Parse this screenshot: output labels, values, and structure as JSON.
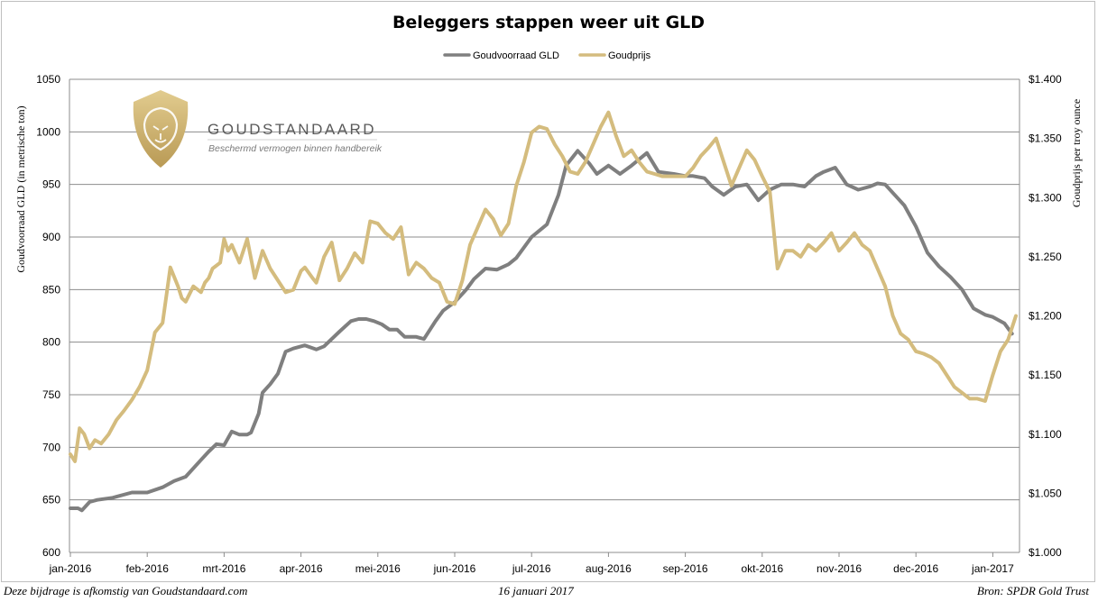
{
  "chart_data": {
    "type": "line",
    "title": "Beleggers stappen weer uit GLD",
    "ylabel": "Goudvoorraad GLD (in metrische ton)",
    "y2label": "Goudprijs per troy ounce",
    "ylim": [
      600,
      1050
    ],
    "y2lim": [
      1.0,
      1.4
    ],
    "yticks": [
      "600",
      "650",
      "700",
      "750",
      "800",
      "850",
      "900",
      "950",
      "1000",
      "1050"
    ],
    "y2ticks": [
      "$1.000",
      "$1.050",
      "$1.100",
      "$1.150",
      "$1.200",
      "$1.250",
      "$1.300",
      "$1.350",
      "$1.400"
    ],
    "xticks": [
      "jan-2016",
      "feb-2016",
      "mrt-2016",
      "apr-2016",
      "mei-2016",
      "jun-2016",
      "jul-2016",
      "aug-2016",
      "sep-2016",
      "okt-2016",
      "nov-2016",
      "dec-2016",
      "jan-2017"
    ],
    "grid": true,
    "legend_position": "top-center",
    "series": [
      {
        "name": "Goudvoorraad GLD",
        "color": "#7f7f7f",
        "axis": "left",
        "x": [
          0.0,
          0.1,
          0.15,
          0.25,
          0.35,
          0.55,
          0.8,
          1.0,
          1.2,
          1.35,
          1.5,
          1.7,
          1.8,
          1.9,
          2.0,
          2.1,
          2.2,
          2.3,
          2.35,
          2.45,
          2.5,
          2.6,
          2.7,
          2.8,
          2.9,
          3.05,
          3.2,
          3.3,
          3.5,
          3.65,
          3.75,
          3.85,
          3.95,
          4.05,
          4.15,
          4.25,
          4.35,
          4.5,
          4.6,
          4.75,
          4.85,
          5.0,
          5.15,
          5.25,
          5.4,
          5.55,
          5.7,
          5.8,
          5.9,
          6.0,
          6.2,
          6.35,
          6.45,
          6.6,
          6.75,
          6.85,
          7.0,
          7.15,
          7.3,
          7.5,
          7.65,
          7.85,
          8.0,
          8.1,
          8.25,
          8.35,
          8.5,
          8.65,
          8.8,
          8.95,
          9.1,
          9.25,
          9.4,
          9.55,
          9.7,
          9.8,
          9.95,
          10.1,
          10.25,
          10.4,
          10.5,
          10.6,
          10.75,
          10.85,
          11.0,
          11.15,
          11.3,
          11.45,
          11.6,
          11.75,
          11.9,
          12.0,
          12.15,
          12.25
        ],
        "values": [
          642,
          642,
          640,
          648,
          650,
          652,
          657,
          657,
          662,
          668,
          672,
          688,
          696,
          703,
          702,
          715,
          712,
          712,
          714,
          732,
          752,
          760,
          770,
          791,
          794,
          797,
          793,
          796,
          810,
          820,
          822,
          822,
          820,
          817,
          812,
          812,
          805,
          805,
          803,
          820,
          830,
          838,
          850,
          860,
          870,
          869,
          874,
          880,
          890,
          900,
          912,
          940,
          968,
          982,
          970,
          960,
          968,
          960,
          968,
          980,
          962,
          960,
          958,
          958,
          956,
          948,
          940,
          948,
          950,
          935,
          945,
          950,
          950,
          948,
          958,
          962,
          966,
          950,
          945,
          948,
          951,
          950,
          938,
          930,
          910,
          885,
          872,
          862,
          850,
          832,
          826,
          824,
          818,
          808
        ]
      },
      {
        "name": "Goudprijs",
        "color": "#d4bc7e",
        "axis": "right",
        "x": [
          0.0,
          0.06,
          0.12,
          0.18,
          0.25,
          0.32,
          0.4,
          0.5,
          0.6,
          0.7,
          0.8,
          0.9,
          1.0,
          1.1,
          1.2,
          1.3,
          1.4,
          1.45,
          1.5,
          1.6,
          1.7,
          1.75,
          1.8,
          1.85,
          1.95,
          2.0,
          2.05,
          2.1,
          2.2,
          2.3,
          2.4,
          2.5,
          2.6,
          2.7,
          2.8,
          2.9,
          3.0,
          3.05,
          3.15,
          3.2,
          3.3,
          3.4,
          3.5,
          3.6,
          3.7,
          3.8,
          3.9,
          4.0,
          4.1,
          4.2,
          4.3,
          4.4,
          4.5,
          4.6,
          4.7,
          4.8,
          4.9,
          5.0,
          5.1,
          5.2,
          5.3,
          5.4,
          5.5,
          5.6,
          5.7,
          5.8,
          5.9,
          6.0,
          6.1,
          6.2,
          6.3,
          6.4,
          6.5,
          6.6,
          6.7,
          6.8,
          6.9,
          7.0,
          7.1,
          7.2,
          7.3,
          7.4,
          7.5,
          7.6,
          7.7,
          7.8,
          7.9,
          8.0,
          8.1,
          8.2,
          8.3,
          8.4,
          8.5,
          8.6,
          8.7,
          8.8,
          8.9,
          9.0,
          9.1,
          9.2,
          9.3,
          9.4,
          9.5,
          9.6,
          9.7,
          9.8,
          9.9,
          10.0,
          10.1,
          10.2,
          10.3,
          10.4,
          10.5,
          10.6,
          10.7,
          10.8,
          10.9,
          11.0,
          11.1,
          11.2,
          11.3,
          11.4,
          11.5,
          11.6,
          11.7,
          11.8,
          11.9,
          12.0,
          12.1,
          12.2,
          12.3
        ],
        "values": [
          1.083,
          1.077,
          1.105,
          1.1,
          1.088,
          1.095,
          1.092,
          1.1,
          1.112,
          1.12,
          1.129,
          1.14,
          1.154,
          1.186,
          1.194,
          1.241,
          1.225,
          1.215,
          1.212,
          1.225,
          1.22,
          1.228,
          1.232,
          1.24,
          1.245,
          1.265,
          1.255,
          1.26,
          1.245,
          1.265,
          1.232,
          1.255,
          1.24,
          1.23,
          1.22,
          1.222,
          1.238,
          1.241,
          1.232,
          1.228,
          1.25,
          1.262,
          1.23,
          1.24,
          1.253,
          1.245,
          1.28,
          1.278,
          1.27,
          1.265,
          1.275,
          1.235,
          1.245,
          1.24,
          1.232,
          1.228,
          1.212,
          1.21,
          1.23,
          1.26,
          1.275,
          1.29,
          1.282,
          1.268,
          1.278,
          1.31,
          1.33,
          1.355,
          1.36,
          1.358,
          1.345,
          1.335,
          1.322,
          1.32,
          1.33,
          1.345,
          1.36,
          1.372,
          1.352,
          1.335,
          1.34,
          1.33,
          1.322,
          1.32,
          1.318,
          1.318,
          1.318,
          1.318,
          1.325,
          1.335,
          1.342,
          1.35,
          1.33,
          1.31,
          1.325,
          1.34,
          1.332,
          1.318,
          1.305,
          1.24,
          1.255,
          1.255,
          1.25,
          1.26,
          1.255,
          1.262,
          1.27,
          1.255,
          1.262,
          1.27,
          1.26,
          1.255,
          1.24,
          1.225,
          1.2,
          1.185,
          1.18,
          1.17,
          1.168,
          1.165,
          1.16,
          1.15,
          1.14,
          1.135,
          1.13,
          1.13,
          1.128,
          1.15,
          1.17,
          1.18,
          1.2
        ]
      }
    ]
  },
  "legend": {
    "gld": "Goudvoorraad GLD",
    "gold": "Goudprijs"
  },
  "logo": {
    "wordmark": "GOUDSTANDAARD",
    "tagline": "Beschermd vermogen binnen handbereik"
  },
  "footer": {
    "left": "Deze bijdrage is afkomstig van Goudstandaard.com",
    "center": "16 januari 2017",
    "right": "Bron: SPDR Gold Trust"
  }
}
